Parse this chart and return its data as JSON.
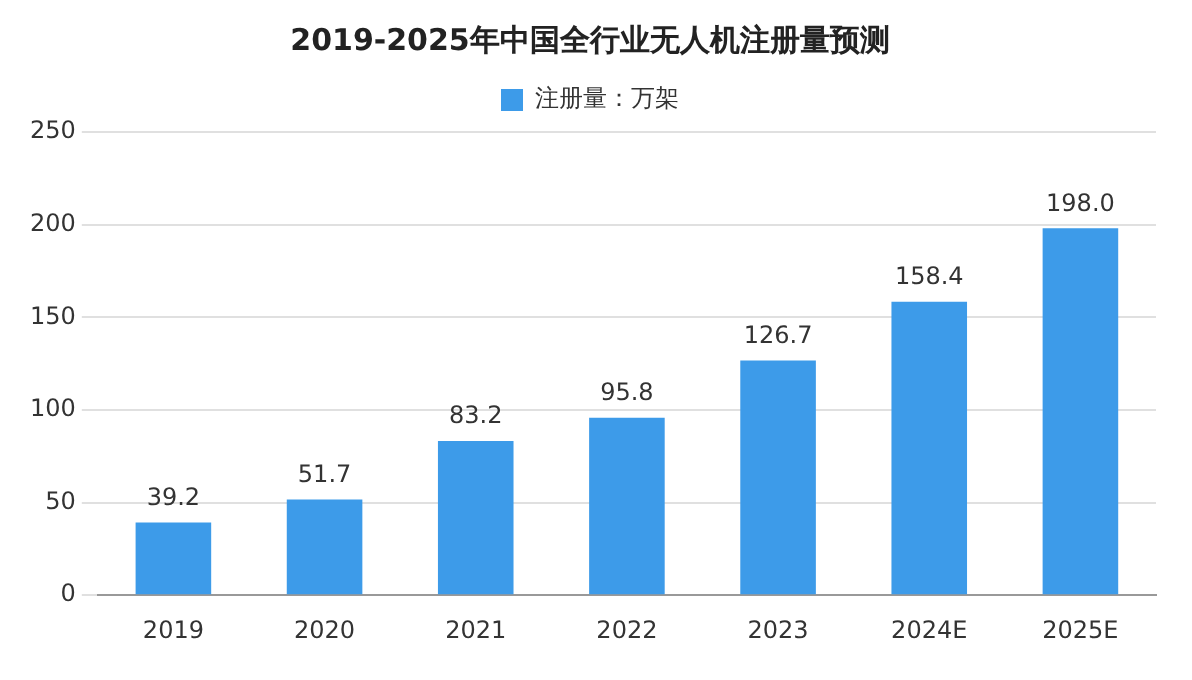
{
  "chart_data": {
    "type": "bar",
    "title": "2019-2025年中国全行业无人机注册量预测",
    "categories": [
      "2019",
      "2020",
      "2021",
      "2022",
      "2023",
      "2024E",
      "2025E"
    ],
    "series": [
      {
        "name": "注册量：万架",
        "color": "#3d9be9",
        "values": [
          39.2,
          51.7,
          83.2,
          95.8,
          126.7,
          158.4,
          198.0
        ]
      }
    ],
    "value_labels": [
      "39.2",
      "51.7",
      "83.2",
      "95.8",
      "126.7",
      "158.4",
      "198.0"
    ],
    "ylim": [
      0,
      250
    ],
    "yticks": [
      0,
      50,
      100,
      150,
      200,
      250
    ],
    "grid": "y",
    "legend": "top"
  }
}
